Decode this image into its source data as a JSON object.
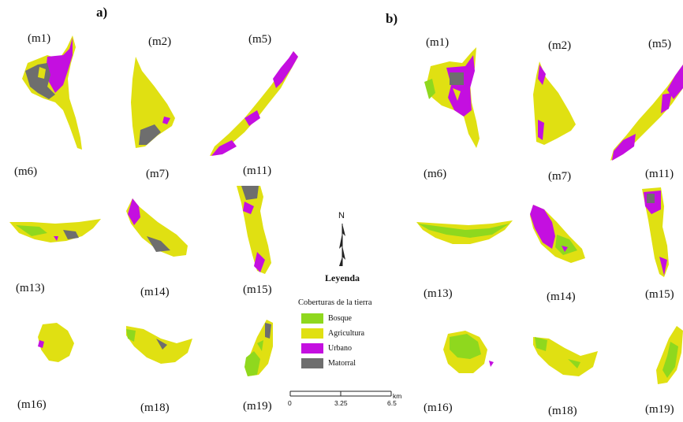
{
  "colors": {
    "bosque": "#8fd81e",
    "agricultura": "#e0e012",
    "urbano": "#c40fe0",
    "matorral": "#6e6e6e"
  },
  "panels": {
    "a": {
      "label": "a)"
    },
    "b": {
      "label": "b)"
    }
  },
  "panel_a_labels": [
    "(m1)",
    "(m2)",
    "(m5)",
    "(m6)",
    "(m7)",
    "(m11)",
    "(m13)",
    "(m14)",
    "(m15)",
    "(m16)",
    "(m18)",
    "(m19)"
  ],
  "panel_b_labels": [
    "(m1)",
    "(m2)",
    "(m5)",
    "(m6)",
    "(m7)",
    "(m11)",
    "(m13)",
    "(m14)",
    "(m15)",
    "(m16)",
    "(m18)",
    "(m19)"
  ],
  "north_arrow": {
    "letter": "N"
  },
  "legend": {
    "title": "Leyenda",
    "subtitle": "Coberturas de la tierra",
    "items": [
      {
        "label": "Bosque",
        "color": "#8fd81e"
      },
      {
        "label": "Agricultura",
        "color": "#e0e012"
      },
      {
        "label": "Urbano",
        "color": "#c40fe0"
      },
      {
        "label": "Matorral",
        "color": "#6e6e6e"
      }
    ]
  },
  "scale_bar": {
    "ticks": [
      "0",
      "3.25",
      "6.5"
    ],
    "unit": "km"
  }
}
